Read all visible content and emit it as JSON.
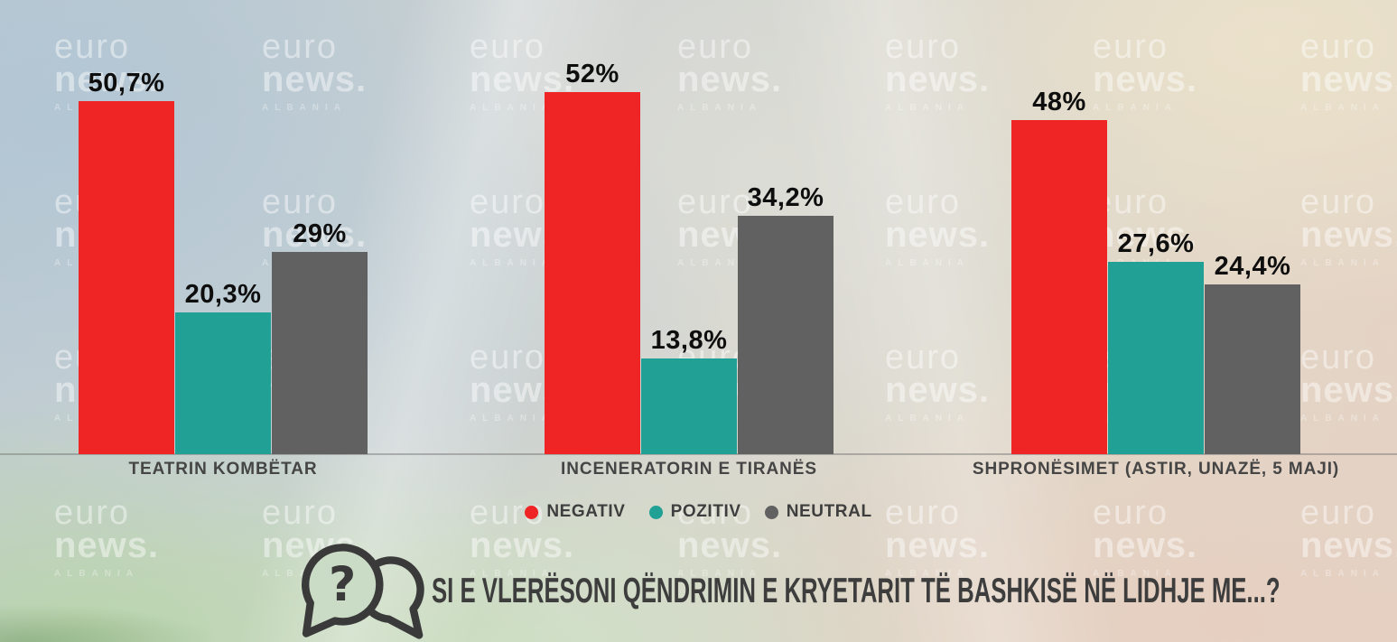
{
  "brand_watermark": {
    "line1": "euro",
    "line2": "news.",
    "line3": "ALBANIA"
  },
  "chart_data": {
    "type": "bar",
    "title": "",
    "unit": "percent",
    "categories": [
      "TEATRIN KOMBËTAR",
      "INCENERATORIN E TIRANËS",
      "SHPRONËSIMET (ASTIR, UNAZË, 5 MAJI)"
    ],
    "series": [
      {
        "name": "NEGATIV",
        "color": "#ee2524",
        "values": [
          50.7,
          52,
          48
        ],
        "display_labels": [
          "50,7%",
          "52%",
          "48%"
        ]
      },
      {
        "name": "POZITIV",
        "color": "#21a096",
        "values": [
          20.3,
          13.8,
          27.6
        ],
        "display_labels": [
          "20,3%",
          "13,8%",
          "27,6%"
        ]
      },
      {
        "name": "NEUTRAL",
        "color": "#616161",
        "values": [
          29,
          34.2,
          24.4
        ],
        "display_labels": [
          "29%",
          "34,2%",
          "24,4%"
        ]
      }
    ],
    "ylim": [
      0,
      52
    ],
    "grid": false,
    "legend_position": "bottom-center",
    "value_labels": "above-bars"
  },
  "legend": {
    "items": [
      {
        "label": "NEGATIV",
        "color": "#ee2524"
      },
      {
        "label": "POZITIV",
        "color": "#21a096"
      },
      {
        "label": "NEUTRAL",
        "color": "#616161"
      }
    ]
  },
  "question": {
    "icon": "question-speech-bubbles-icon",
    "text": "SI E VLERËSONI QËNDRIMIN E KRYETARIT TË BASHKISË NË LIDHJE ME...?"
  }
}
